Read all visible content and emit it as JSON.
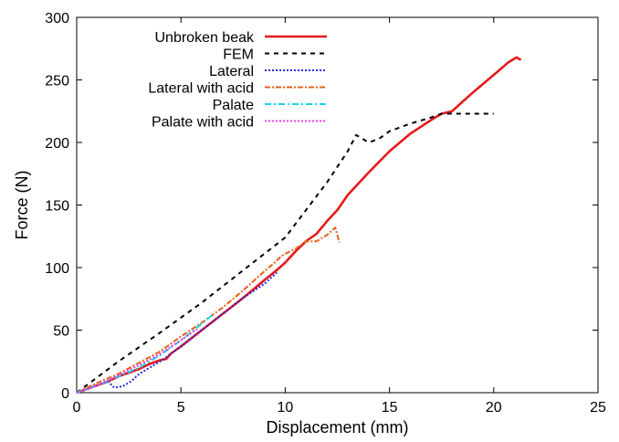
{
  "chart_data": {
    "type": "line",
    "title": "",
    "xlabel": "Displacement (mm)",
    "ylabel": "Force (N)",
    "xlim": [
      0,
      25
    ],
    "ylim": [
      0,
      300
    ],
    "x_ticks": [
      0,
      5,
      10,
      15,
      20,
      25
    ],
    "y_ticks": [
      0,
      50,
      100,
      150,
      200,
      250,
      300
    ],
    "grid": false,
    "legend_position": "top-left",
    "series": [
      {
        "name": "Unbroken beak",
        "color": "#e41a1c",
        "dash": "solid",
        "points": [
          [
            0,
            0
          ],
          [
            0.5,
            3
          ],
          [
            1,
            6
          ],
          [
            1.5,
            9
          ],
          [
            2,
            13
          ],
          [
            2.5,
            16
          ],
          [
            3,
            19
          ],
          [
            3.5,
            23
          ],
          [
            4,
            26
          ],
          [
            4.3,
            27
          ],
          [
            4.5,
            31
          ],
          [
            5,
            37
          ],
          [
            6,
            50
          ],
          [
            7,
            63
          ],
          [
            8,
            76
          ],
          [
            9,
            90
          ],
          [
            9.6,
            98
          ],
          [
            10,
            104
          ],
          [
            10.5,
            113
          ],
          [
            11,
            121
          ],
          [
            11.5,
            127
          ],
          [
            12,
            137
          ],
          [
            12.5,
            146
          ],
          [
            13,
            158
          ],
          [
            14,
            176
          ],
          [
            15,
            193
          ],
          [
            16,
            207
          ],
          [
            17,
            218
          ],
          [
            17.5,
            223
          ],
          [
            18,
            225
          ],
          [
            19,
            240
          ],
          [
            20,
            254
          ],
          [
            20.7,
            264
          ],
          [
            21.1,
            268
          ],
          [
            21.3,
            266
          ]
        ]
      },
      {
        "name": "FEM",
        "color": "#000000",
        "dash": "5,5",
        "points": [
          [
            0,
            0
          ],
          [
            2,
            25
          ],
          [
            4,
            48
          ],
          [
            6,
            72
          ],
          [
            8,
            98
          ],
          [
            10,
            124
          ],
          [
            12,
            168
          ],
          [
            13,
            193
          ],
          [
            13.4,
            206
          ],
          [
            13.7,
            203
          ],
          [
            14,
            200
          ],
          [
            14.5,
            203
          ],
          [
            15,
            209
          ],
          [
            16,
            215
          ],
          [
            17,
            220
          ],
          [
            17.5,
            223
          ],
          [
            18,
            223
          ],
          [
            19,
            223
          ],
          [
            20,
            223
          ]
        ]
      },
      {
        "name": "Lateral",
        "color": "#2a2ae0",
        "dash": "2,2",
        "points": [
          [
            0,
            0
          ],
          [
            0.5,
            3
          ],
          [
            1,
            6
          ],
          [
            1.5,
            9
          ],
          [
            1.8,
            4
          ],
          [
            2.2,
            5
          ],
          [
            2.6,
            9
          ],
          [
            3,
            15
          ],
          [
            4,
            25
          ],
          [
            5,
            37
          ],
          [
            6,
            50
          ],
          [
            7,
            63
          ],
          [
            8,
            76
          ],
          [
            9,
            87
          ],
          [
            9.6,
            96
          ]
        ]
      },
      {
        "name": "Lateral with acid",
        "color": "#e8601a",
        "dash": "6,2,2,2",
        "points": [
          [
            0,
            0
          ],
          [
            1,
            8
          ],
          [
            2,
            15
          ],
          [
            3,
            24
          ],
          [
            4,
            33
          ],
          [
            5,
            45
          ],
          [
            6,
            56
          ],
          [
            7,
            68
          ],
          [
            8,
            82
          ],
          [
            9,
            97
          ],
          [
            9.5,
            104
          ],
          [
            9.8,
            109
          ],
          [
            10,
            111
          ],
          [
            10.5,
            115
          ],
          [
            11,
            121
          ],
          [
            11.5,
            121
          ],
          [
            12,
            126
          ],
          [
            12.4,
            132
          ],
          [
            12.6,
            120
          ]
        ]
      },
      {
        "name": "Palate",
        "color": "#19d3e6",
        "dash": "7,3,2,3",
        "points": [
          [
            0,
            0
          ],
          [
            1,
            6
          ],
          [
            2,
            13
          ],
          [
            3,
            20
          ],
          [
            4,
            30
          ],
          [
            5,
            42
          ],
          [
            6,
            55
          ],
          [
            6.5,
            62
          ]
        ]
      },
      {
        "name": "Palate with acid",
        "color": "#ef3aef",
        "dash": "2,2",
        "points": [
          [
            0,
            0
          ],
          [
            1,
            6
          ],
          [
            2,
            14
          ],
          [
            3,
            22
          ],
          [
            4,
            31
          ],
          [
            5,
            42
          ],
          [
            5.8,
            51
          ]
        ]
      }
    ]
  }
}
